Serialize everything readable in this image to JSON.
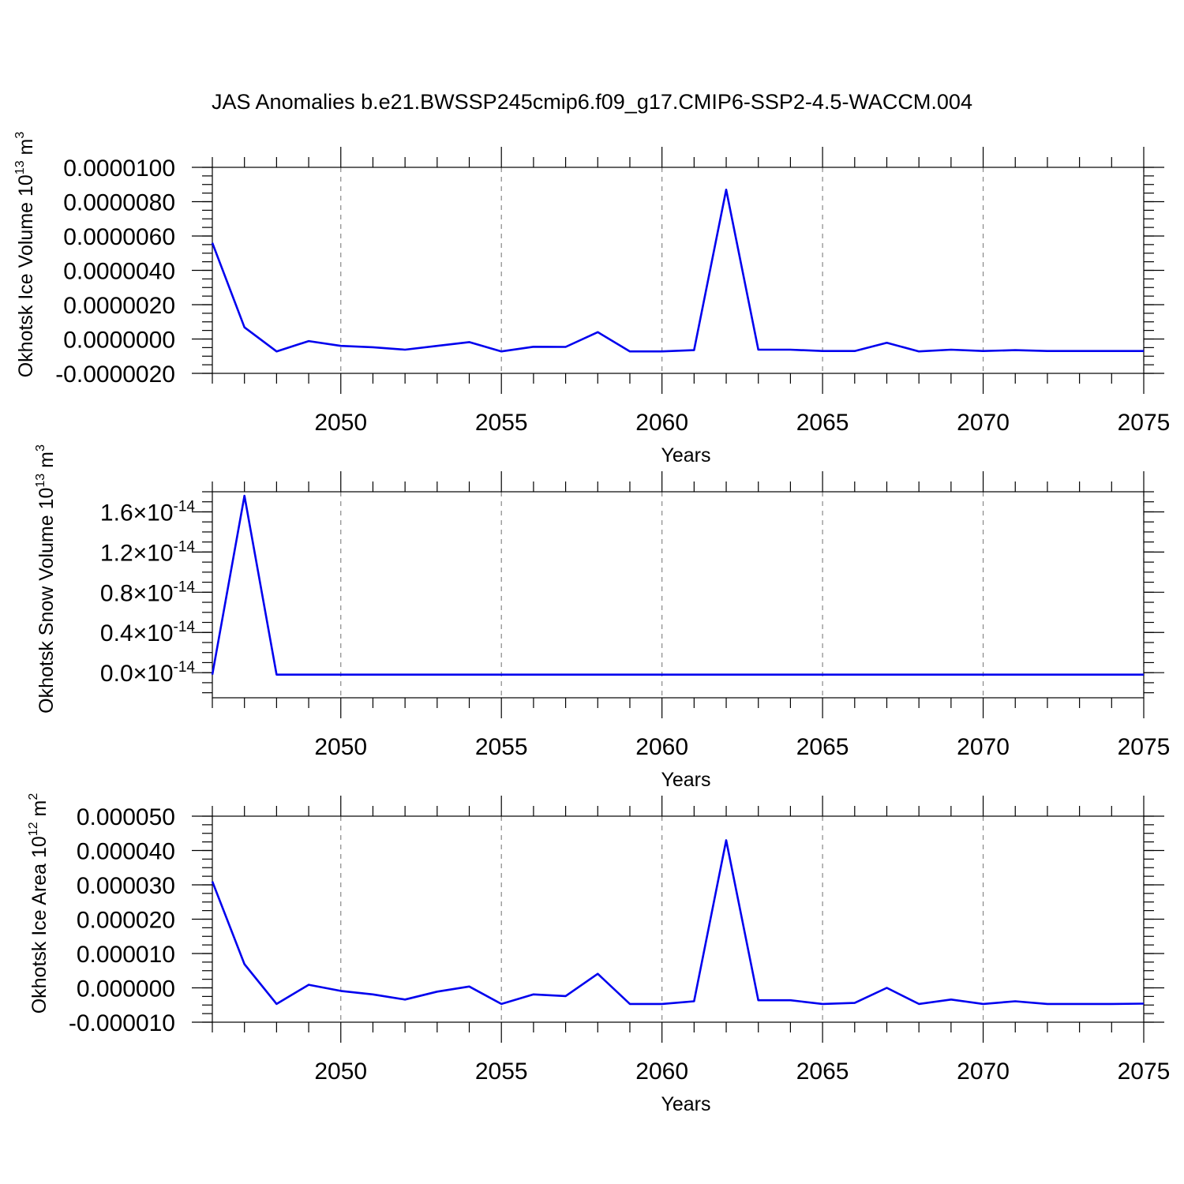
{
  "title": "JAS Anomalies b.e21.BWSSP245cmip6.f09_g17.CMIP6-SSP2-4.5-WACCM.004",
  "colors": {
    "series": "#0000ee",
    "grid": "#888888",
    "axis": "#000000"
  },
  "chart_data": [
    {
      "type": "line",
      "xlabel": "Years",
      "ylabel_main": "Okhotsk Ice Volume 10",
      "ylabel_exp": "13",
      "ylabel_unit": " m",
      "ylabel_unit_exp": "3",
      "xlim": [
        2046,
        2075
      ],
      "ylim": [
        -2e-06,
        1e-05
      ],
      "xticks": [
        "2050",
        "2055",
        "2060",
        "2065",
        "2070",
        "2075"
      ],
      "yticks": [
        {
          "value": 1e-05,
          "label": "0.0000100"
        },
        {
          "value": 8e-06,
          "label": "0.0000080"
        },
        {
          "value": 6e-06,
          "label": "0.0000060"
        },
        {
          "value": 4e-06,
          "label": "0.0000040"
        },
        {
          "value": 2e-06,
          "label": "0.0000020"
        },
        {
          "value": 0.0,
          "label": "0.0000000"
        },
        {
          "value": -2e-06,
          "label": "-0.0000020"
        }
      ],
      "grid": "vertical dashed at x major ticks",
      "x": [
        2046,
        2047,
        2048,
        2049,
        2050,
        2051,
        2052,
        2053,
        2054,
        2055,
        2056,
        2057,
        2058,
        2059,
        2060,
        2061,
        2062,
        2063,
        2064,
        2065,
        2066,
        2067,
        2068,
        2069,
        2070,
        2071,
        2072,
        2073,
        2074,
        2075
      ],
      "y": [
        5.6e-06,
        6.8e-07,
        -7.2e-07,
        -1.2e-07,
        -4e-07,
        -4.8e-07,
        -6.2e-07,
        -4e-07,
        -1.8e-07,
        -7.2e-07,
        -4.5e-07,
        -4.6e-07,
        4e-07,
        -7.2e-07,
        -7.2e-07,
        -6.5e-07,
        8.7e-06,
        -6.2e-07,
        -6.2e-07,
        -7e-07,
        -7e-07,
        -2.2e-07,
        -7.2e-07,
        -6.2e-07,
        -7e-07,
        -6.5e-07,
        -7e-07,
        -7e-07,
        -7e-07,
        -7e-07
      ]
    },
    {
      "type": "line",
      "xlabel": "Years",
      "ylabel_main": "Okhotsk Snow Volume 10",
      "ylabel_exp": "13",
      "ylabel_unit": " m",
      "ylabel_unit_exp": "3",
      "xlim": [
        2046,
        2075
      ],
      "ylim": [
        -0.25,
        1.8
      ],
      "tick_exponent_base": "×10",
      "tick_exponent": "-14",
      "xticks": [
        "2050",
        "2055",
        "2060",
        "2065",
        "2070",
        "2075"
      ],
      "yticks": [
        {
          "value": 1.6,
          "label": "1.6"
        },
        {
          "value": 1.2,
          "label": "1.2"
        },
        {
          "value": 0.8,
          "label": "0.8"
        },
        {
          "value": 0.4,
          "label": "0.4"
        },
        {
          "value": 0.0,
          "label": "0.0"
        }
      ],
      "grid": "vertical dashed at x major ticks",
      "x": [
        2046,
        2047,
        2048,
        2049,
        2050,
        2051,
        2052,
        2053,
        2054,
        2055,
        2056,
        2057,
        2058,
        2059,
        2060,
        2061,
        2062,
        2063,
        2064,
        2065,
        2066,
        2067,
        2068,
        2069,
        2070,
        2071,
        2072,
        2073,
        2074,
        2075
      ],
      "y": [
        -0.02,
        1.76,
        -0.02,
        -0.02,
        -0.02,
        -0.02,
        -0.02,
        -0.02,
        -0.02,
        -0.02,
        -0.02,
        -0.02,
        -0.02,
        -0.02,
        -0.02,
        -0.02,
        -0.02,
        -0.02,
        -0.02,
        -0.02,
        -0.02,
        -0.02,
        -0.02,
        -0.02,
        -0.02,
        -0.02,
        -0.02,
        -0.02,
        -0.02,
        -0.02
      ]
    },
    {
      "type": "line",
      "xlabel": "Years",
      "ylabel_main": "Okhotsk Ice Area 10",
      "ylabel_exp": "12",
      "ylabel_unit": " m",
      "ylabel_unit_exp": "2",
      "xlim": [
        2046,
        2075
      ],
      "ylim": [
        -1e-05,
        5e-05
      ],
      "xticks": [
        "2050",
        "2055",
        "2060",
        "2065",
        "2070",
        "2075"
      ],
      "yticks": [
        {
          "value": 5e-05,
          "label": "0.000050"
        },
        {
          "value": 4e-05,
          "label": "0.000040"
        },
        {
          "value": 3e-05,
          "label": "0.000030"
        },
        {
          "value": 2e-05,
          "label": "0.000020"
        },
        {
          "value": 1e-05,
          "label": "0.000010"
        },
        {
          "value": 0.0,
          "label": "0.000000"
        },
        {
          "value": -1e-05,
          "label": "-0.000010"
        }
      ],
      "grid": "vertical dashed at x major ticks",
      "x": [
        2046,
        2047,
        2048,
        2049,
        2050,
        2051,
        2052,
        2053,
        2054,
        2055,
        2056,
        2057,
        2058,
        2059,
        2060,
        2061,
        2062,
        2063,
        2064,
        2065,
        2066,
        2067,
        2068,
        2069,
        2070,
        2071,
        2072,
        2073,
        2074,
        2075
      ],
      "y": [
        3.1e-05,
        6.9e-06,
        -4.7e-06,
        9e-07,
        -9e-07,
        -1.9e-06,
        -3.4e-06,
        -1.1e-06,
        4e-07,
        -4.7e-06,
        -1.9e-06,
        -2.4e-06,
        4.1e-06,
        -4.7e-06,
        -4.7e-06,
        -3.9e-06,
        4.3e-05,
        -3.6e-06,
        -3.6e-06,
        -4.7e-06,
        -4.4e-06,
        0.0,
        -4.7e-06,
        -3.4e-06,
        -4.7e-06,
        -3.9e-06,
        -4.7e-06,
        -4.7e-06,
        -4.7e-06,
        -4.6e-06
      ]
    }
  ]
}
